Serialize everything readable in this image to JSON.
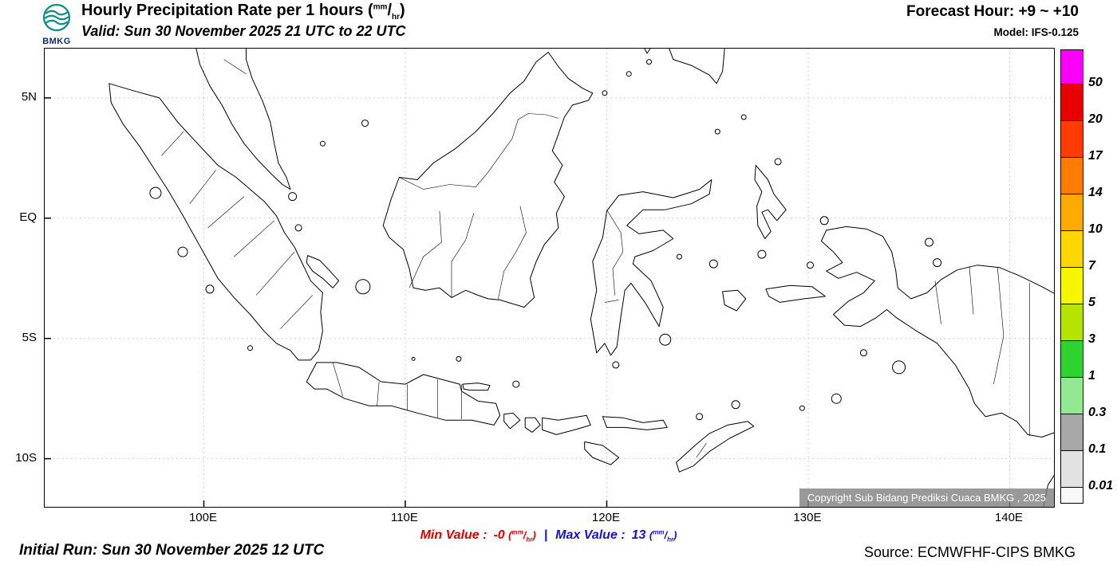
{
  "header": {
    "logo_text": "BMKG",
    "title": "Hourly Precipitation Rate per 1 hours",
    "valid": "Valid: Sun 30 November 2025 21 UTC to 22 UTC",
    "forecast_hour_label": "Forecast Hour:",
    "forecast_hour_value": "+9 ~ +10",
    "model_label": "Model:",
    "model_value": "IFS-0.125"
  },
  "unit": {
    "numerator": "mm",
    "denominator": "hr"
  },
  "map": {
    "lat_ticks": [
      {
        "label": "5N",
        "lat": 5
      },
      {
        "label": "EQ",
        "lat": 0
      },
      {
        "label": "5S",
        "lat": -5
      },
      {
        "label": "10S",
        "lat": -10
      }
    ],
    "lon_ticks": [
      {
        "label": "100E",
        "lon": 100
      },
      {
        "label": "110E",
        "lon": 110
      },
      {
        "label": "120E",
        "lon": 120
      },
      {
        "label": "130E",
        "lon": 130
      },
      {
        "label": "140E",
        "lon": 140
      }
    ],
    "copyright": "Copyright Sub Bidang Prediksi Cuaca BMKG , 2025"
  },
  "legend": {
    "labels": [
      "50",
      "20",
      "17",
      "14",
      "10",
      "7",
      "5",
      "3",
      "1",
      "0.3",
      "0.1",
      "0.01"
    ],
    "colors": [
      "#fa00fa",
      "#e60000",
      "#ff3b00",
      "#ff7c00",
      "#ffaa00",
      "#ffd600",
      "#f6f600",
      "#b4e400",
      "#2fd32f",
      "#93e893",
      "#a8a8a8",
      "#e2e2e2",
      "#f8f8f8"
    ]
  },
  "stats": {
    "min_label": "Min Value :",
    "min_value": "-0",
    "separator": "|",
    "max_label": "Max Value :",
    "max_value": "13",
    "min_color": "#dd0000",
    "max_color": "#1414cc"
  },
  "footer": {
    "initial_run": "Initial Run: Sun 30 November 2025 12 UTC",
    "source": "Source: ECMWFHF-CIPS BMKG"
  }
}
